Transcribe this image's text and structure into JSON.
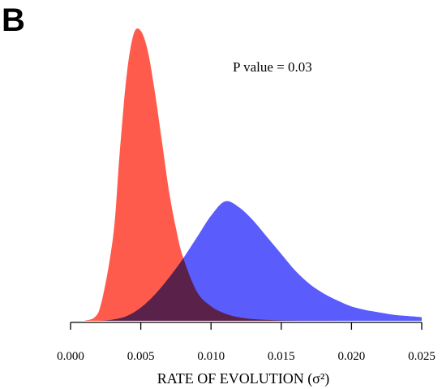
{
  "panel_label": "B",
  "chart_data": {
    "type": "area",
    "title": "",
    "annotation": "P value = 0.03",
    "xlabel": "RATE OF EVOLUTION (σ²)",
    "ylabel": "",
    "xlim": [
      0.0,
      0.025
    ],
    "xticks": [
      "0.000",
      "0.005",
      "0.010",
      "0.015",
      "0.020",
      "0.025"
    ],
    "tick_values": [
      0.0,
      0.005,
      0.01,
      0.015,
      0.02,
      0.025
    ],
    "grid": false,
    "series": [
      {
        "color": "#5a5cfb",
        "x": [
          0.0,
          0.001,
          0.002,
          0.003,
          0.004,
          0.005,
          0.006,
          0.007,
          0.008,
          0.009,
          0.01,
          0.011,
          0.012,
          0.013,
          0.014,
          0.015,
          0.016,
          0.017,
          0.018,
          0.019,
          0.02,
          0.021,
          0.022,
          0.023,
          0.024,
          0.025
        ],
        "y": [
          0.0,
          0.0,
          0.0,
          0.01,
          0.04,
          0.11,
          0.22,
          0.36,
          0.52,
          0.7,
          0.88,
          1.0,
          0.95,
          0.84,
          0.7,
          0.56,
          0.42,
          0.31,
          0.23,
          0.17,
          0.12,
          0.09,
          0.07,
          0.05,
          0.04,
          0.03
        ]
      },
      {
        "color": "#fe5b4c",
        "x": [
          0.0,
          0.001,
          0.002,
          0.003,
          0.0035,
          0.004,
          0.0045,
          0.005,
          0.0055,
          0.006,
          0.0065,
          0.007,
          0.0075,
          0.008,
          0.009,
          0.01,
          0.011,
          0.012,
          0.013,
          0.014,
          0.015,
          0.016,
          0.017,
          0.018,
          0.019,
          0.02
        ],
        "y": [
          0.0,
          0.0,
          0.03,
          0.28,
          0.58,
          0.85,
          0.99,
          1.0,
          0.93,
          0.79,
          0.62,
          0.45,
          0.32,
          0.22,
          0.1,
          0.05,
          0.025,
          0.012,
          0.006,
          0.003,
          0.0015,
          0.0008,
          0.0004,
          0.0002,
          0.0001,
          0.0
        ]
      }
    ]
  }
}
